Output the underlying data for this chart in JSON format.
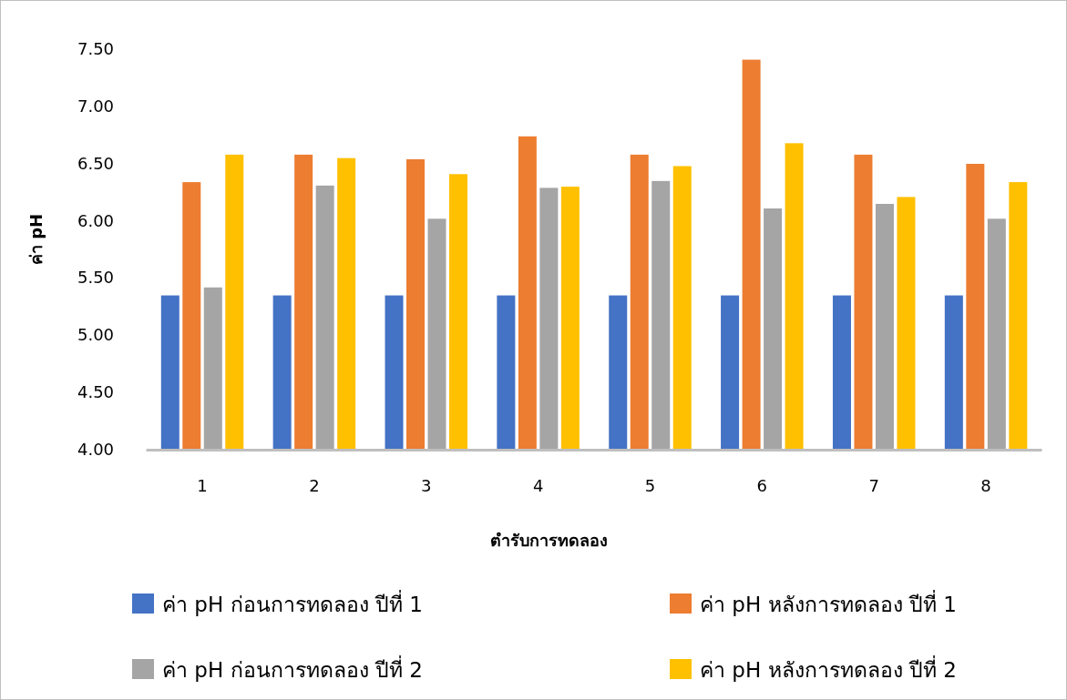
{
  "chart_data": {
    "type": "bar",
    "xlabel": "ตำรับการทดลอง",
    "ylabel": "ค่า pH",
    "categories": [
      "1",
      "2",
      "3",
      "4",
      "5",
      "6",
      "7",
      "8"
    ],
    "series": [
      {
        "name": "ค่า pH ก่อนการทดลอง ปีที่ 1",
        "color": "#4472c4",
        "values": [
          5.34,
          5.34,
          5.34,
          5.34,
          5.34,
          5.34,
          5.34,
          5.34
        ]
      },
      {
        "name": "ค่า pH หลังการทดลอง ปีที่ 1",
        "color": "#ed7d31",
        "values": [
          6.33,
          6.57,
          6.53,
          6.73,
          6.57,
          7.4,
          6.57,
          6.49
        ]
      },
      {
        "name": "ค่า pH ก่อนการทดลอง ปีที่ 2",
        "color": "#a5a5a5",
        "values": [
          5.41,
          6.3,
          6.01,
          6.28,
          6.34,
          6.1,
          6.14,
          6.01
        ]
      },
      {
        "name": "ค่า pH หลังการทดลอง ปีที่ 2",
        "color": "#ffc000",
        "values": [
          6.57,
          6.54,
          6.4,
          6.29,
          6.47,
          6.67,
          6.2,
          6.33
        ]
      }
    ],
    "ylim": [
      4,
      7.5
    ],
    "yticks": [
      {
        "value": 4,
        "label": "4.00"
      },
      {
        "value": 4.5,
        "label": "4.50"
      },
      {
        "value": 5,
        "label": "5.00"
      },
      {
        "value": 5.5,
        "label": "5.50"
      },
      {
        "value": 6,
        "label": "6.00"
      },
      {
        "value": 6.5,
        "label": "6.50"
      },
      {
        "value": 7,
        "label": "7.00"
      },
      {
        "value": 7.5,
        "label": "7.50"
      }
    ],
    "grid": false,
    "legend": "bottom"
  }
}
